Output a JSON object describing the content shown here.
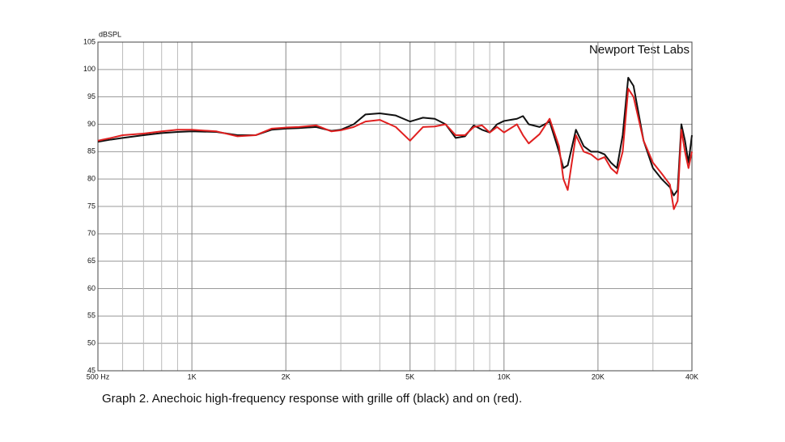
{
  "chart_data": {
    "type": "line",
    "caption": "Graph 2. Anechoic high-frequency response with grille off (black) and on (red).",
    "ylabel": "dBSPL",
    "annotation": "Newport Test Labs",
    "xscale": "log",
    "xlim": [
      500,
      40000
    ],
    "ylim": [
      45,
      105
    ],
    "xticks": [
      {
        "value": 500,
        "label": "500 Hz"
      },
      {
        "value": 1000,
        "label": "1K"
      },
      {
        "value": 2000,
        "label": "2K"
      },
      {
        "value": 5000,
        "label": "5K"
      },
      {
        "value": 10000,
        "label": "10K"
      },
      {
        "value": 20000,
        "label": "20K"
      },
      {
        "value": 40000,
        "label": "40K"
      }
    ],
    "xminorticks": [
      600,
      700,
      800,
      900,
      3000,
      4000,
      6000,
      7000,
      8000,
      9000,
      30000
    ],
    "yticks": [
      45,
      50,
      55,
      60,
      65,
      70,
      75,
      80,
      85,
      90,
      95,
      100,
      105
    ],
    "grid": true,
    "x": [
      500,
      550,
      600,
      700,
      800,
      900,
      1000,
      1200,
      1400,
      1600,
      1800,
      2000,
      2200,
      2500,
      2800,
      3000,
      3300,
      3600,
      4000,
      4500,
      5000,
      5500,
      6000,
      6500,
      7000,
      7500,
      8000,
      8500,
      9000,
      9500,
      10000,
      11000,
      11500,
      12000,
      13000,
      14000,
      15000,
      15500,
      16000,
      17000,
      18000,
      19000,
      20000,
      21000,
      22000,
      23000,
      24000,
      25000,
      26000,
      28000,
      30000,
      32000,
      34000,
      35000,
      36000,
      37000,
      38000,
      39000,
      40000
    ],
    "series": [
      {
        "name": "grille off",
        "color": "#111111",
        "values": [
          86.8,
          87.2,
          87.5,
          88,
          88.4,
          88.6,
          88.7,
          88.6,
          88,
          88,
          89,
          89.2,
          89.3,
          89.5,
          88.8,
          89,
          90,
          91.8,
          92,
          91.6,
          90.5,
          91.2,
          91,
          90,
          87.5,
          87.8,
          89.8,
          89,
          88.5,
          90,
          90.6,
          91,
          91.5,
          90,
          89.5,
          90.5,
          85,
          82,
          82.5,
          89,
          86,
          85,
          85,
          84.5,
          83,
          82,
          88,
          98.5,
          97,
          87,
          82,
          80,
          78.5,
          77,
          78,
          90,
          87,
          83,
          88
        ]
      },
      {
        "name": "grille on",
        "color": "#e02020",
        "values": [
          87,
          87.5,
          88,
          88.3,
          88.7,
          89,
          89,
          88.7,
          87.8,
          88,
          89.2,
          89.4,
          89.5,
          89.8,
          88.7,
          88.9,
          89.5,
          90.5,
          90.8,
          89.5,
          87,
          89.5,
          89.6,
          90,
          88,
          88,
          89.5,
          89.8,
          88.5,
          89.5,
          88.5,
          90,
          88,
          86.5,
          88.2,
          91,
          86,
          80,
          78,
          88,
          85,
          84.5,
          83.5,
          84,
          82,
          81,
          85,
          96.5,
          95,
          87,
          83,
          81,
          79,
          74.5,
          76,
          89,
          85,
          82,
          85
        ]
      }
    ]
  }
}
